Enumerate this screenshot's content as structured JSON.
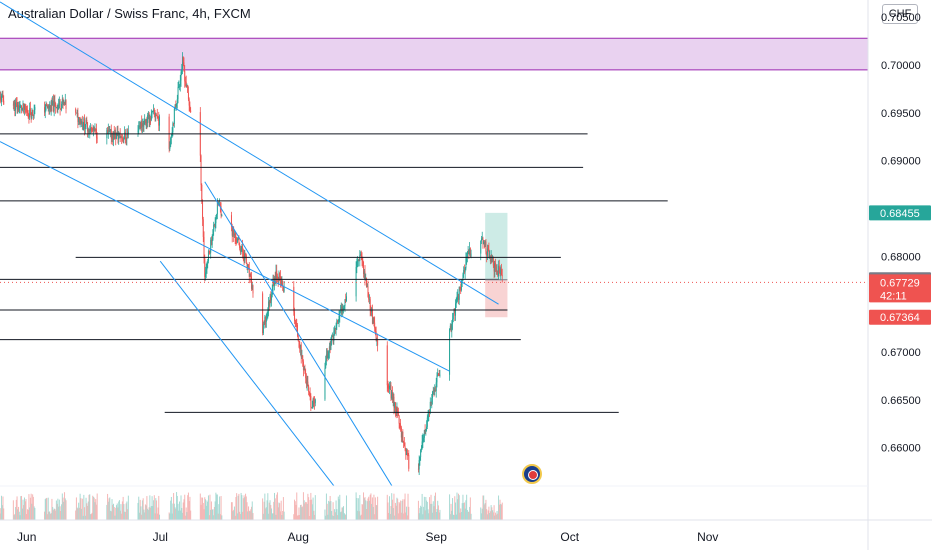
{
  "header": {
    "title": "Australian Dollar / Swiss Franc, 4h, FXCM",
    "currency": "CHF"
  },
  "colors": {
    "up": "#26a69a",
    "down": "#ef5350",
    "zone_fill": "#e9d2f0",
    "zone_border": "#9c27b0",
    "trend_line": "#2196f3",
    "level_line": "#131722",
    "target_fill": "#cdebe6",
    "stop_fill": "#f8d3d3",
    "last_price_dashed": "#ef5350"
  },
  "chart_data": {
    "type": "candlestick",
    "symbol": "AUDCHF",
    "interval": "4h",
    "ylim": [
      0.656,
      0.7068
    ],
    "x_axis": {
      "ticks": [
        {
          "label": "Jun",
          "date": "2023-06-01"
        },
        {
          "label": "Jul",
          "date": "2023-07-01"
        },
        {
          "label": "Aug",
          "date": "2023-08-01"
        },
        {
          "label": "Sep",
          "date": "2023-09-01"
        },
        {
          "label": "Oct",
          "date": "2023-10-01"
        },
        {
          "label": "Nov",
          "date": "2023-11-01"
        }
      ]
    },
    "y_axis": {
      "ticks": [
        "0.70500",
        "0.70000",
        "0.69500",
        "0.69000",
        "0.68000",
        "0.67000",
        "0.66500",
        "0.66000"
      ]
    },
    "price_path": [
      {
        "date": "2023-05-26",
        "close": 0.6965
      },
      {
        "date": "2023-06-02",
        "close": 0.695
      },
      {
        "date": "2023-06-09",
        "close": 0.696
      },
      {
        "date": "2023-06-16",
        "close": 0.693
      },
      {
        "date": "2023-06-23",
        "close": 0.6925
      },
      {
        "date": "2023-06-30",
        "close": 0.695
      },
      {
        "date": "2023-07-03",
        "close": 0.6915
      },
      {
        "date": "2023-07-06",
        "close": 0.7003
      },
      {
        "date": "2023-07-08",
        "close": 0.6945
      },
      {
        "date": "2023-07-10",
        "close": 0.69
      },
      {
        "date": "2023-07-11",
        "close": 0.678
      },
      {
        "date": "2023-07-14",
        "close": 0.6855
      },
      {
        "date": "2023-07-20",
        "close": 0.68
      },
      {
        "date": "2023-07-24",
        "close": 0.672
      },
      {
        "date": "2023-07-27",
        "close": 0.6785
      },
      {
        "date": "2023-07-31",
        "close": 0.674
      },
      {
        "date": "2023-08-04",
        "close": 0.664
      },
      {
        "date": "2023-08-09",
        "close": 0.672
      },
      {
        "date": "2023-08-15",
        "close": 0.6805
      },
      {
        "date": "2023-08-19",
        "close": 0.67
      },
      {
        "date": "2023-08-23",
        "close": 0.664
      },
      {
        "date": "2023-08-27",
        "close": 0.656
      },
      {
        "date": "2023-08-31",
        "close": 0.665
      },
      {
        "date": "2023-09-04",
        "close": 0.672
      },
      {
        "date": "2023-09-08",
        "close": 0.68
      },
      {
        "date": "2023-09-11",
        "close": 0.682
      },
      {
        "date": "2023-09-14",
        "close": 0.679
      },
      {
        "date": "2023-09-17",
        "close": 0.6773
      }
    ],
    "price_labels": [
      {
        "value": "0.68455",
        "kind": "target",
        "color": "#26a69a"
      },
      {
        "value": "0.67756",
        "kind": "entry",
        "color": "#787b86"
      },
      {
        "value": "0.67729",
        "kind": "last",
        "color": "#ef5350",
        "countdown": "42:11"
      },
      {
        "value": "0.67364",
        "kind": "stop",
        "color": "#ef5350"
      }
    ],
    "supply_zone": {
      "y0": 0.6995,
      "y1": 0.7028
    },
    "horizontal_levels": [
      {
        "y": 0.6928,
        "x0": "2023-05-26",
        "x1": "2023-10-05"
      },
      {
        "y": 0.6893,
        "x0": "2023-05-26",
        "x1": "2023-10-04"
      },
      {
        "y": 0.6858,
        "x0": "2023-05-26",
        "x1": "2023-10-23"
      },
      {
        "y": 0.6799,
        "x0": "2023-06-12",
        "x1": "2023-09-29"
      },
      {
        "y": 0.6776,
        "x0": "2023-05-26",
        "x1": "2023-09-15"
      },
      {
        "y": 0.6744,
        "x0": "2023-05-26",
        "x1": "2023-09-17"
      },
      {
        "y": 0.6713,
        "x0": "2023-05-26",
        "x1": "2023-09-20"
      },
      {
        "y": 0.6637,
        "x0": "2023-07-02",
        "x1": "2023-10-12"
      }
    ],
    "trend_lines": [
      {
        "x0": "2023-05-26",
        "y0": 0.7066,
        "x1": "2023-09-15",
        "y1": 0.675
      },
      {
        "x0": "2023-05-26",
        "y0": 0.692,
        "x1": "2023-09-04",
        "y1": 0.668
      },
      {
        "x0": "2023-07-11",
        "y0": 0.6878,
        "x1": "2023-08-30",
        "y1": 0.65
      },
      {
        "x0": "2023-07-01",
        "y0": 0.6795,
        "x1": "2023-08-19",
        "y1": 0.65
      }
    ],
    "position": {
      "start": "2023-09-12",
      "end": "2023-09-17",
      "entry": 0.67756,
      "target": 0.68455,
      "stop": 0.67364
    }
  }
}
